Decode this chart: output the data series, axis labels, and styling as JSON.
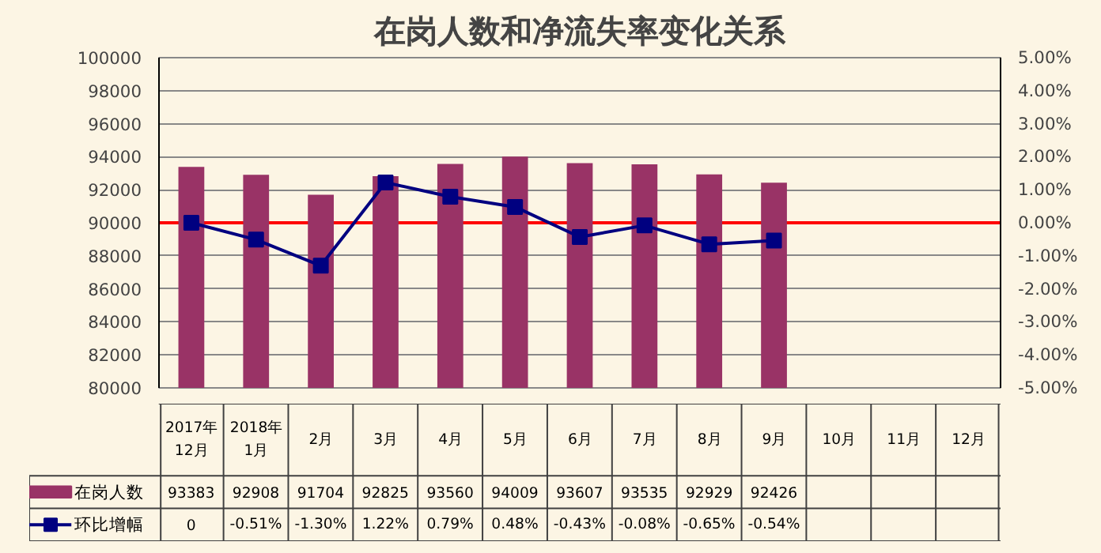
{
  "chart_data": {
    "type": "bar",
    "title": "在岗人数和净流失率变化关系",
    "categories": [
      "2017年\n12月",
      "2018年\n1月",
      "2月",
      "3月",
      "4月",
      "5月",
      "6月",
      "7月",
      "8月",
      "9月",
      "10月",
      "11月",
      "12月"
    ],
    "series": [
      {
        "name": "在岗人数",
        "color": "#993366",
        "values": [
          93383,
          92908,
          91704,
          92825,
          93560,
          94009,
          93607,
          93535,
          92929,
          92426,
          null,
          null,
          null
        ],
        "value_labels": [
          "93383",
          "92908",
          "91704",
          "92825",
          "93560",
          "94009",
          "93607",
          "93535",
          "92929",
          "92426",
          null,
          null,
          null
        ]
      },
      {
        "name": "环比增幅",
        "type": "line",
        "axis": "y2",
        "color": "#000080",
        "marker": "square",
        "values": [
          0,
          -0.51,
          -1.3,
          1.22,
          0.79,
          0.48,
          -0.43,
          -0.08,
          -0.65,
          -0.54,
          null,
          null,
          null
        ],
        "value_labels": [
          "0",
          "-0.51%",
          "-1.30%",
          "1.22%",
          "0.79%",
          "0.48%",
          "-0.43%",
          "-0.08%",
          "-0.65%",
          "-0.54%",
          null,
          null,
          null
        ]
      }
    ],
    "ylim": [
      80000,
      100000
    ],
    "yticks": [
      80000,
      82000,
      84000,
      86000,
      88000,
      90000,
      92000,
      94000,
      96000,
      98000,
      100000
    ],
    "y2lim": [
      -5,
      5
    ],
    "y2ticks": [
      {
        "value": -5,
        "label": "-5.00%"
      },
      {
        "value": -4,
        "label": "-4.00%"
      },
      {
        "value": -3,
        "label": "-3.00%"
      },
      {
        "value": -2,
        "label": "-2.00%"
      },
      {
        "value": -1,
        "label": "-1.00%"
      },
      {
        "value": 0,
        "label": "0.00%"
      },
      {
        "value": 1,
        "label": "1.00%"
      },
      {
        "value": 2,
        "label": "2.00%"
      },
      {
        "value": 3,
        "label": "3.00%"
      },
      {
        "value": 4,
        "label": "4.00%"
      },
      {
        "value": 5,
        "label": "5.00%"
      }
    ],
    "ref_lines": [
      {
        "axis": "y2",
        "value": 0,
        "color": "#ff0000"
      }
    ],
    "grid": "y",
    "legend": "bottom"
  }
}
